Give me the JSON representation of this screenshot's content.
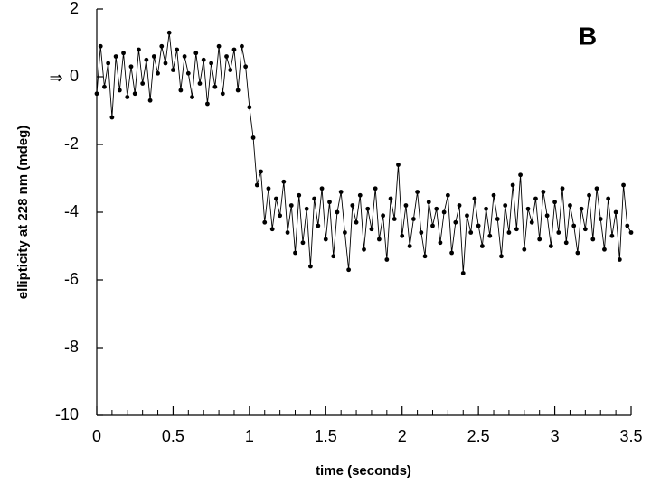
{
  "chart_data": {
    "type": "line",
    "corner_label": "B",
    "annotation": "⇒",
    "xlabel": "time (seconds)",
    "ylabel": "ellipticity at 228 nm (mdeg)",
    "xlim": [
      0,
      3.5
    ],
    "ylim": [
      -10,
      2
    ],
    "xticks": [
      0,
      0.5,
      1,
      1.5,
      2,
      2.5,
      3,
      3.5
    ],
    "x_minor_ticks": [
      0.1,
      0.2,
      0.3,
      0.4,
      0.6,
      0.7,
      0.8,
      0.9,
      1.1,
      1.2,
      1.3,
      1.4,
      1.6,
      1.7,
      1.8,
      1.9,
      2.1,
      2.2,
      2.3,
      2.4,
      2.6,
      2.7,
      2.8,
      2.9,
      3.1,
      3.2,
      3.3,
      3.4
    ],
    "yticks": [
      2,
      0,
      -2,
      -4,
      -6,
      -8,
      -10
    ],
    "x": [
      0,
      0.025,
      0.05,
      0.075,
      0.1,
      0.125,
      0.15,
      0.175,
      0.2,
      0.225,
      0.25,
      0.275,
      0.3,
      0.325,
      0.35,
      0.375,
      0.4,
      0.425,
      0.45,
      0.475,
      0.5,
      0.525,
      0.55,
      0.575,
      0.6,
      0.625,
      0.65,
      0.675,
      0.7,
      0.725,
      0.75,
      0.775,
      0.8,
      0.825,
      0.85,
      0.875,
      0.9,
      0.925,
      0.95,
      0.975,
      1,
      1.025,
      1.05,
      1.075,
      1.1,
      1.125,
      1.15,
      1.175,
      1.2,
      1.225,
      1.25,
      1.275,
      1.3,
      1.325,
      1.35,
      1.375,
      1.4,
      1.425,
      1.45,
      1.475,
      1.5,
      1.525,
      1.55,
      1.575,
      1.6,
      1.625,
      1.65,
      1.675,
      1.7,
      1.725,
      1.75,
      1.775,
      1.8,
      1.825,
      1.85,
      1.875,
      1.9,
      1.925,
      1.95,
      1.975,
      2,
      2.025,
      2.05,
      2.075,
      2.1,
      2.125,
      2.15,
      2.175,
      2.2,
      2.225,
      2.25,
      2.275,
      2.3,
      2.325,
      2.35,
      2.375,
      2.4,
      2.425,
      2.45,
      2.475,
      2.5,
      2.525,
      2.55,
      2.575,
      2.6,
      2.625,
      2.65,
      2.675,
      2.7,
      2.725,
      2.75,
      2.775,
      2.8,
      2.825,
      2.85,
      2.875,
      2.9,
      2.925,
      2.95,
      2.975,
      3,
      3.025,
      3.05,
      3.075,
      3.1,
      3.125,
      3.15,
      3.175,
      3.2,
      3.225,
      3.25,
      3.275,
      3.3,
      3.325,
      3.35,
      3.375,
      3.4,
      3.425,
      3.45,
      3.475,
      3.5
    ],
    "series": [
      {
        "color": "#000000",
        "values": [
          -0.5,
          0.9,
          -0.3,
          0.4,
          -1.2,
          0.6,
          -0.4,
          0.7,
          -0.6,
          0.3,
          -0.5,
          0.8,
          -0.2,
          0.5,
          -0.7,
          0.6,
          0.1,
          0.9,
          0.4,
          1.3,
          0.2,
          0.8,
          -0.4,
          0.6,
          0.1,
          -0.6,
          0.7,
          -0.2,
          0.5,
          -0.8,
          0.4,
          -0.3,
          0.9,
          -0.5,
          0.6,
          0.2,
          0.8,
          -0.4,
          0.9,
          0.3,
          -0.9,
          -1.8,
          -3.2,
          -2.8,
          -4.3,
          -3.3,
          -4.5,
          -3.6,
          -4.1,
          -3.1,
          -4.6,
          -3.8,
          -5.2,
          -3.5,
          -4.9,
          -3.9,
          -5.6,
          -3.6,
          -4.4,
          -3.3,
          -4.8,
          -3.7,
          -5.3,
          -4.0,
          -3.4,
          -4.6,
          -5.7,
          -3.8,
          -4.3,
          -3.5,
          -5.1,
          -3.9,
          -4.5,
          -3.3,
          -4.8,
          -4.1,
          -5.4,
          -3.6,
          -4.2,
          -2.6,
          -4.7,
          -3.8,
          -5.0,
          -4.2,
          -3.4,
          -4.6,
          -5.3,
          -3.7,
          -4.4,
          -3.9,
          -4.9,
          -4.0,
          -3.5,
          -5.2,
          -4.3,
          -3.8,
          -5.8,
          -4.1,
          -4.6,
          -3.6,
          -4.4,
          -5.0,
          -3.9,
          -4.7,
          -3.5,
          -4.2,
          -5.3,
          -3.8,
          -4.6,
          -3.2,
          -4.5,
          -2.9,
          -5.1,
          -3.9,
          -4.3,
          -3.6,
          -4.8,
          -3.4,
          -4.1,
          -5.0,
          -3.7,
          -4.6,
          -3.3,
          -4.9,
          -3.8,
          -4.4,
          -5.2,
          -3.9,
          -4.5,
          -3.5,
          -4.8,
          -3.3,
          -4.2,
          -5.1,
          -3.6,
          -4.7,
          -4.0,
          -5.4,
          -3.2,
          -4.4,
          -4.6
        ]
      }
    ]
  }
}
